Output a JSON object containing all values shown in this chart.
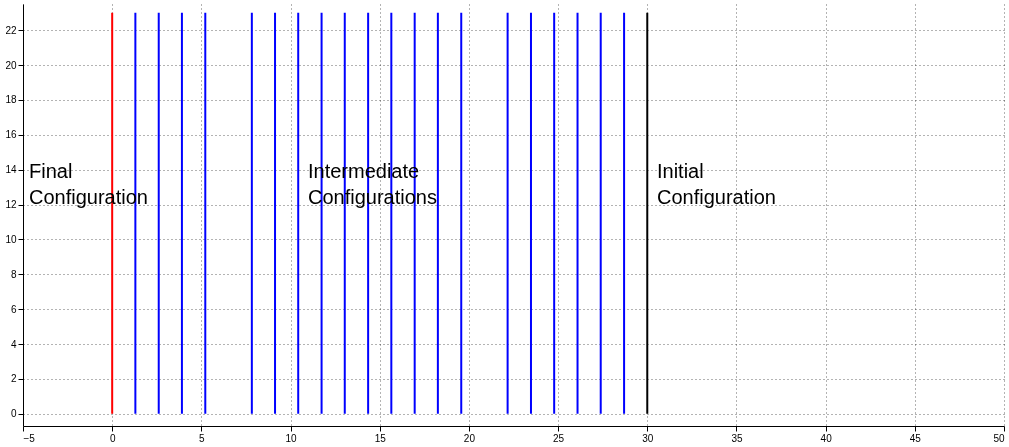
{
  "chart_data": {
    "type": "line",
    "xlim": [
      -5,
      50
    ],
    "ylim": [
      -0.7,
      23.5
    ],
    "xticks": [
      -5,
      0,
      5,
      10,
      15,
      20,
      25,
      30,
      35,
      40,
      45,
      50
    ],
    "yticks": [
      0,
      2,
      4,
      6,
      8,
      10,
      12,
      14,
      16,
      18,
      20,
      22
    ],
    "grid": true,
    "line_style": "solid",
    "marker": "none",
    "series": [
      {
        "color": "#ff0000",
        "x": [
          0,
          0
        ],
        "values": [
          0,
          23
        ]
      },
      {
        "color": "#0000ff",
        "x": [
          1.3,
          1.3
        ],
        "values": [
          0,
          23
        ]
      },
      {
        "color": "#0000ff",
        "x": [
          2.61,
          2.61
        ],
        "values": [
          0,
          23
        ]
      },
      {
        "color": "#0000ff",
        "x": [
          3.91,
          3.91
        ],
        "values": [
          0,
          23
        ]
      },
      {
        "color": "#0000ff",
        "x": [
          5.22,
          5.22
        ],
        "values": [
          0,
          23
        ]
      },
      {
        "color": "#0000ff",
        "x": [
          7.83,
          7.83
        ],
        "values": [
          0,
          23
        ]
      },
      {
        "color": "#0000ff",
        "x": [
          9.13,
          9.13
        ],
        "values": [
          0,
          23
        ]
      },
      {
        "color": "#0000ff",
        "x": [
          10.43,
          10.43
        ],
        "values": [
          0,
          23
        ]
      },
      {
        "color": "#0000ff",
        "x": [
          11.74,
          11.74
        ],
        "values": [
          0,
          23
        ]
      },
      {
        "color": "#0000ff",
        "x": [
          13.04,
          13.04
        ],
        "values": [
          0,
          23
        ]
      },
      {
        "color": "#0000ff",
        "x": [
          14.35,
          14.35
        ],
        "values": [
          0,
          23
        ]
      },
      {
        "color": "#0000ff",
        "x": [
          15.65,
          15.65
        ],
        "values": [
          0,
          23
        ]
      },
      {
        "color": "#0000ff",
        "x": [
          16.96,
          16.96
        ],
        "values": [
          0,
          23
        ]
      },
      {
        "color": "#0000ff",
        "x": [
          18.26,
          18.26
        ],
        "values": [
          0,
          23
        ]
      },
      {
        "color": "#0000ff",
        "x": [
          19.57,
          19.57
        ],
        "values": [
          0,
          23
        ]
      },
      {
        "color": "#0000ff",
        "x": [
          22.17,
          22.17
        ],
        "values": [
          0,
          23
        ]
      },
      {
        "color": "#0000ff",
        "x": [
          23.48,
          23.48
        ],
        "values": [
          0,
          23
        ]
      },
      {
        "color": "#0000ff",
        "x": [
          24.78,
          24.78
        ],
        "values": [
          0,
          23
        ]
      },
      {
        "color": "#0000ff",
        "x": [
          26.09,
          26.09
        ],
        "values": [
          0,
          23
        ]
      },
      {
        "color": "#0000ff",
        "x": [
          27.39,
          27.39
        ],
        "values": [
          0,
          23
        ]
      },
      {
        "color": "#0000ff",
        "x": [
          28.7,
          28.7
        ],
        "values": [
          0,
          23
        ]
      },
      {
        "color": "#000000",
        "x": [
          30,
          30
        ],
        "values": [
          0,
          23
        ]
      }
    ],
    "annotations": [
      "Final Configuration",
      "Intermediate Configurations",
      "Initial Configuration"
    ]
  }
}
